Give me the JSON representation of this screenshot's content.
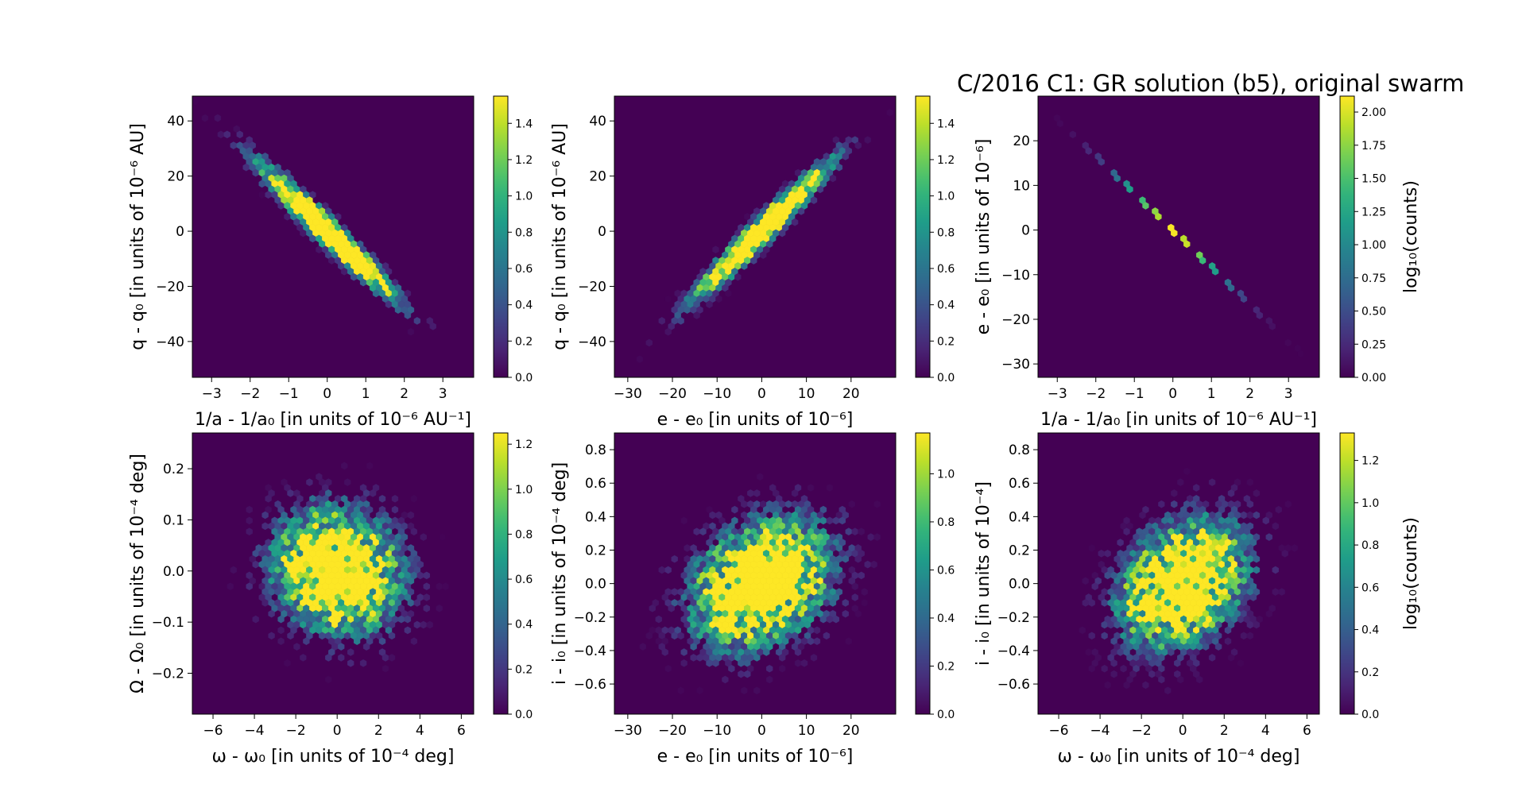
{
  "figure_title": "C/2016 C1: GR solution (b5), original swarm",
  "chart_data": [
    {
      "type": "heatmap",
      "subtype": "hexbin",
      "xlabel": "1/a - 1/a₀ [in units of 10⁻⁶ AU⁻¹]",
      "ylabel": "q - q₀ [in units of 10⁻⁶ AU]",
      "xlim": [
        -3.5,
        3.8
      ],
      "ylim": [
        -53,
        49
      ],
      "xticks": [
        -3,
        -2,
        -1,
        0,
        1,
        2,
        3
      ],
      "yticks": [
        -40,
        -20,
        0,
        20,
        40
      ],
      "distribution": {
        "kind": "correlated",
        "corr": -0.97,
        "x_sd": 1.05,
        "y_sd": 14.5
      },
      "colorbar": {
        "min": 0.0,
        "max": 1.55,
        "ticks": [
          0.0,
          0.2,
          0.4,
          0.6,
          0.8,
          1.0,
          1.2,
          1.4
        ],
        "label": ""
      }
    },
    {
      "type": "heatmap",
      "subtype": "hexbin",
      "xlabel": "e - e₀ [in units of 10⁻⁶]",
      "ylabel": "q - q₀ [in units of 10⁻⁶ AU]",
      "xlim": [
        -33,
        30
      ],
      "ylim": [
        -53,
        49
      ],
      "xticks": [
        -30,
        -20,
        -10,
        0,
        10,
        20
      ],
      "yticks": [
        -40,
        -20,
        0,
        20,
        40
      ],
      "distribution": {
        "kind": "correlated",
        "corr": 0.97,
        "x_sd": 9.0,
        "y_sd": 14.5
      },
      "colorbar": {
        "min": 0.0,
        "max": 1.55,
        "ticks": [
          0.0,
          0.2,
          0.4,
          0.6,
          0.8,
          1.0,
          1.2,
          1.4
        ],
        "label": ""
      }
    },
    {
      "type": "heatmap",
      "subtype": "hexbin",
      "xlabel": "1/a - 1/a₀ [in units of 10⁻⁶ AU⁻¹]",
      "ylabel": "e - e₀ [in units of 10⁻⁶]",
      "xlim": [
        -3.5,
        3.8
      ],
      "ylim": [
        -33,
        30
      ],
      "xticks": [
        -3,
        -2,
        -1,
        0,
        1,
        2,
        3
      ],
      "yticks": [
        -30,
        -20,
        -10,
        0,
        10,
        20
      ],
      "distribution": {
        "kind": "line",
        "slope": -8.3,
        "x_sd": 1.05
      },
      "colorbar": {
        "min": 0.0,
        "max": 2.12,
        "ticks": [
          0.0,
          0.25,
          0.5,
          0.75,
          1.0,
          1.25,
          1.5,
          1.75,
          2.0
        ],
        "tick_labels": [
          "0.00",
          "0.25",
          "0.50",
          "0.75",
          "1.00",
          "1.25",
          "1.50",
          "1.75",
          "2.00"
        ],
        "label": "log₁₀(counts)"
      }
    },
    {
      "type": "heatmap",
      "subtype": "hexbin",
      "xlabel": "ω - ω₀ [in units of 10⁻⁴ deg]",
      "ylabel": "Ω - Ω₀ [in units of 10⁻⁴ deg]",
      "xlim": [
        -7,
        6.6
      ],
      "ylim": [
        -0.28,
        0.27
      ],
      "xticks": [
        -6,
        -4,
        -2,
        0,
        2,
        4,
        6
      ],
      "yticks": [
        -0.2,
        -0.1,
        0.0,
        0.1,
        0.2
      ],
      "tick_labels_y": [
        "−0.2",
        "−0.1",
        "0.0",
        "0.1",
        "0.2"
      ],
      "distribution": {
        "kind": "blob",
        "corr": -0.1,
        "x_sd": 1.75,
        "y_sd": 0.07
      },
      "colorbar": {
        "min": 0.0,
        "max": 1.25,
        "ticks": [
          0.0,
          0.2,
          0.4,
          0.6,
          0.8,
          1.0,
          1.2
        ],
        "label": ""
      }
    },
    {
      "type": "heatmap",
      "subtype": "hexbin",
      "xlabel": "e - e₀ [in units of 10⁻⁶]",
      "ylabel": "i - i₀ [in units of 10⁻⁴ deg]",
      "xlim": [
        -33,
        30
      ],
      "ylim": [
        -0.78,
        0.9
      ],
      "xticks": [
        -30,
        -20,
        -10,
        0,
        10,
        20
      ],
      "yticks": [
        -0.6,
        -0.4,
        -0.2,
        0.0,
        0.2,
        0.4,
        0.6,
        0.8
      ],
      "tick_labels_y": [
        "−0.6",
        "−0.4",
        "−0.2",
        "0.0",
        "0.2",
        "0.4",
        "0.6",
        "0.8"
      ],
      "distribution": {
        "kind": "blob",
        "corr": 0.3,
        "x_sd": 9.0,
        "y_sd": 0.22
      },
      "colorbar": {
        "min": 0.0,
        "max": 1.17,
        "ticks": [
          0.0,
          0.2,
          0.4,
          0.6,
          0.8,
          1.0
        ],
        "label": ""
      }
    },
    {
      "type": "heatmap",
      "subtype": "hexbin",
      "xlabel": "ω - ω₀ [in units of 10⁻⁴ deg]",
      "ylabel": "i - i₀ [in units of 10⁻⁴]",
      "xlim": [
        -7,
        6.6
      ],
      "ylim": [
        -0.78,
        0.9
      ],
      "xticks": [
        -6,
        -4,
        -2,
        0,
        2,
        4,
        6
      ],
      "yticks": [
        -0.6,
        -0.4,
        -0.2,
        0.0,
        0.2,
        0.4,
        0.6,
        0.8
      ],
      "tick_labels_y": [
        "−0.6",
        "−0.4",
        "−0.2",
        "0.0",
        "0.2",
        "0.4",
        "0.6",
        "0.8"
      ],
      "distribution": {
        "kind": "blob",
        "corr": 0.3,
        "x_sd": 1.75,
        "y_sd": 0.22
      },
      "colorbar": {
        "min": 0.0,
        "max": 1.33,
        "ticks": [
          0.0,
          0.2,
          0.4,
          0.6,
          0.8,
          1.0,
          1.2
        ],
        "label": "log₁₀(counts)"
      }
    }
  ],
  "colors": {
    "colormap": "viridis",
    "background": "#440154",
    "viridis_stops": [
      "#440154",
      "#482878",
      "#3e4989",
      "#31688e",
      "#26828e",
      "#1f9e89",
      "#35b779",
      "#6ece58",
      "#b5de2b",
      "#fde725"
    ]
  }
}
